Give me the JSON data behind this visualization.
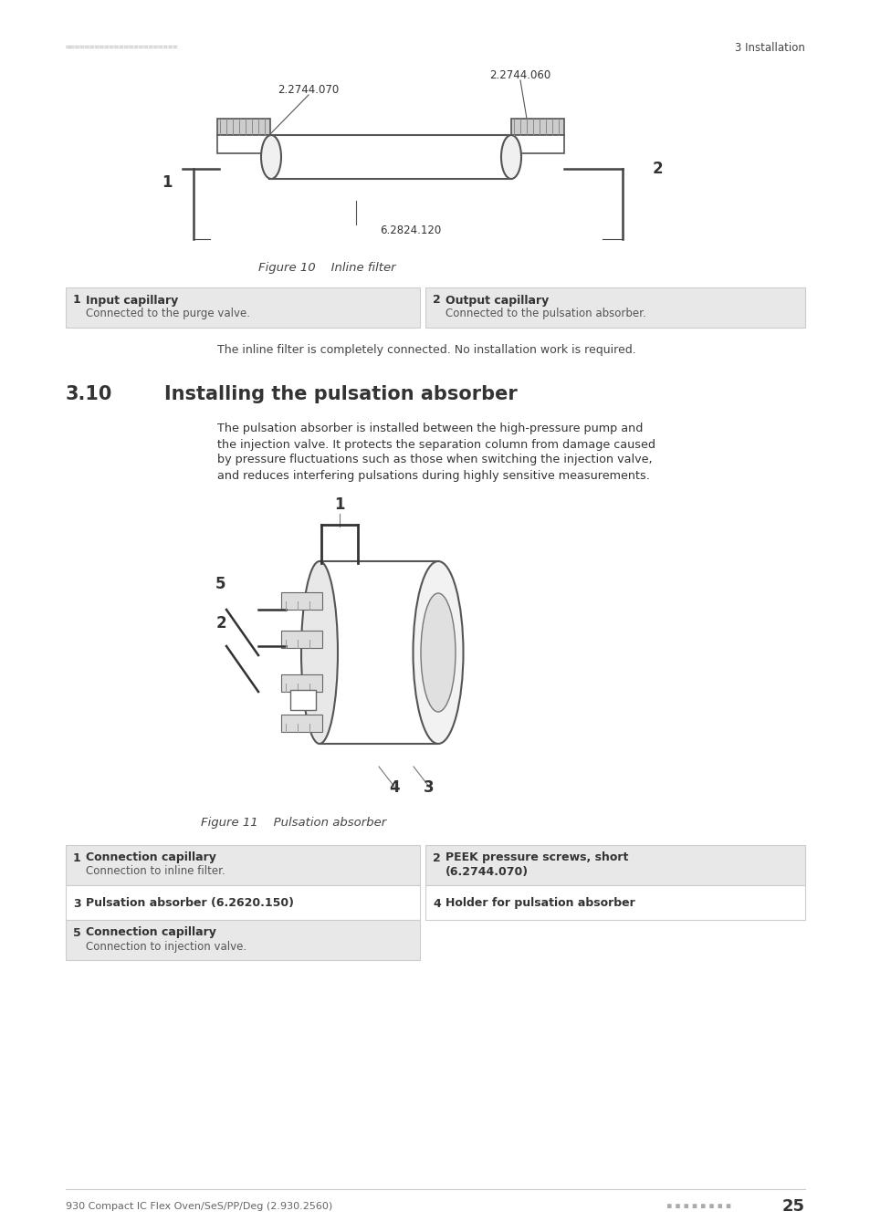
{
  "page_bg": "#ffffff",
  "header_dots_color": "#aaaaaa",
  "header_text_right": "3 Installation",
  "fig10_caption": "Figure 10    Inline filter",
  "fig11_caption": "Figure 11    Pulsation absorber",
  "inline_note": "The inline filter is completely connected. No installation work is required.",
  "section_num": "3.10",
  "section_title": "Installing the pulsation absorber",
  "body_lines": [
    "The pulsation absorber is installed between the high-pressure pump and",
    "the injection valve. It protects the separation column from damage caused",
    "by pressure fluctuations such as those when switching the injection valve,",
    "and reduces interfering pulsations during highly sensitive measurements."
  ],
  "table1": {
    "row1_left_num": "1",
    "row1_left_title": "Input capillary",
    "row1_left_sub": "Connected to the purge valve.",
    "row1_right_num": "2",
    "row1_right_title": "Output capillary",
    "row1_right_sub": "Connected to the pulsation absorber."
  },
  "table2": {
    "row1_left_num": "1",
    "row1_left_title": "Connection capillary",
    "row1_left_sub": "Connection to inline filter.",
    "row1_right_num": "2",
    "row1_right_title": "PEEK pressure screws, short",
    "row1_right_sub": "(6.2744.070)",
    "row2_left_num": "3",
    "row2_left_title": "Pulsation absorber (6.2620.150)",
    "row2_right_num": "4",
    "row2_right_title": "Holder for pulsation absorber",
    "row3_left_num": "5",
    "row3_left_title": "Connection capillary",
    "row3_left_sub": "Connection to injection valve."
  },
  "footer_left": "930 Compact IC Flex Oven/SeS/PP/Deg (2.930.2560)",
  "footer_page": "25",
  "shaded_row_color": "#e8e8e8",
  "white_row_color": "#ffffff",
  "border_color": "#cccccc",
  "label1_060": "2.2744.060",
  "label1_070": "2.2744.070",
  "label1_6824": "6.2824.120"
}
